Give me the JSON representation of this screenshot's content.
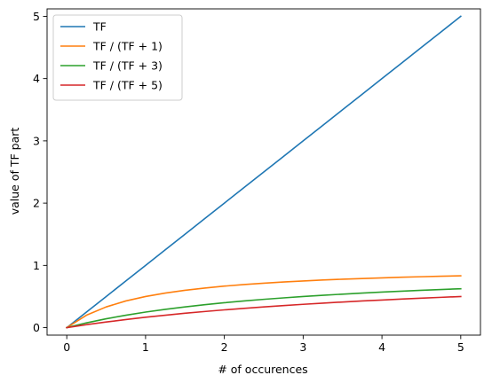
{
  "chart_data": {
    "type": "line",
    "title": "",
    "xlabel": "# of occurences",
    "ylabel": "value of TF part",
    "xlim": [
      -0.25,
      5.25
    ],
    "ylim": [
      -0.12,
      5.12
    ],
    "xticks": [
      0,
      1,
      2,
      3,
      4,
      5
    ],
    "yticks": [
      0,
      1,
      2,
      3,
      4,
      5
    ],
    "grid": false,
    "legend_position": "upper-left",
    "x": [
      0,
      0.25,
      0.5,
      0.75,
      1,
      1.25,
      1.5,
      1.75,
      2,
      2.25,
      2.5,
      2.75,
      3,
      3.25,
      3.5,
      3.75,
      4,
      4.25,
      4.5,
      4.75,
      5
    ],
    "series": [
      {
        "name": "TF",
        "color": "#1f77b4",
        "values": [
          0,
          0.25,
          0.5,
          0.75,
          1,
          1.25,
          1.5,
          1.75,
          2,
          2.25,
          2.5,
          2.75,
          3,
          3.25,
          3.5,
          3.75,
          4,
          4.25,
          4.5,
          4.75,
          5
        ]
      },
      {
        "name": "TF / (TF + 1)",
        "color": "#ff7f0e",
        "values": [
          0,
          0.2,
          0.333,
          0.429,
          0.5,
          0.556,
          0.6,
          0.636,
          0.667,
          0.692,
          0.714,
          0.733,
          0.75,
          0.765,
          0.778,
          0.789,
          0.8,
          0.81,
          0.818,
          0.826,
          0.833
        ]
      },
      {
        "name": "TF / (TF + 3)",
        "color": "#2ca02c",
        "values": [
          0,
          0.077,
          0.143,
          0.2,
          0.25,
          0.294,
          0.333,
          0.368,
          0.4,
          0.429,
          0.455,
          0.478,
          0.5,
          0.52,
          0.538,
          0.556,
          0.571,
          0.586,
          0.6,
          0.613,
          0.625
        ]
      },
      {
        "name": "TF / (TF + 5)",
        "color": "#d62728",
        "values": [
          0,
          0.048,
          0.091,
          0.13,
          0.167,
          0.2,
          0.231,
          0.259,
          0.286,
          0.31,
          0.333,
          0.355,
          0.375,
          0.394,
          0.412,
          0.429,
          0.444,
          0.459,
          0.474,
          0.487,
          0.5
        ]
      }
    ]
  }
}
